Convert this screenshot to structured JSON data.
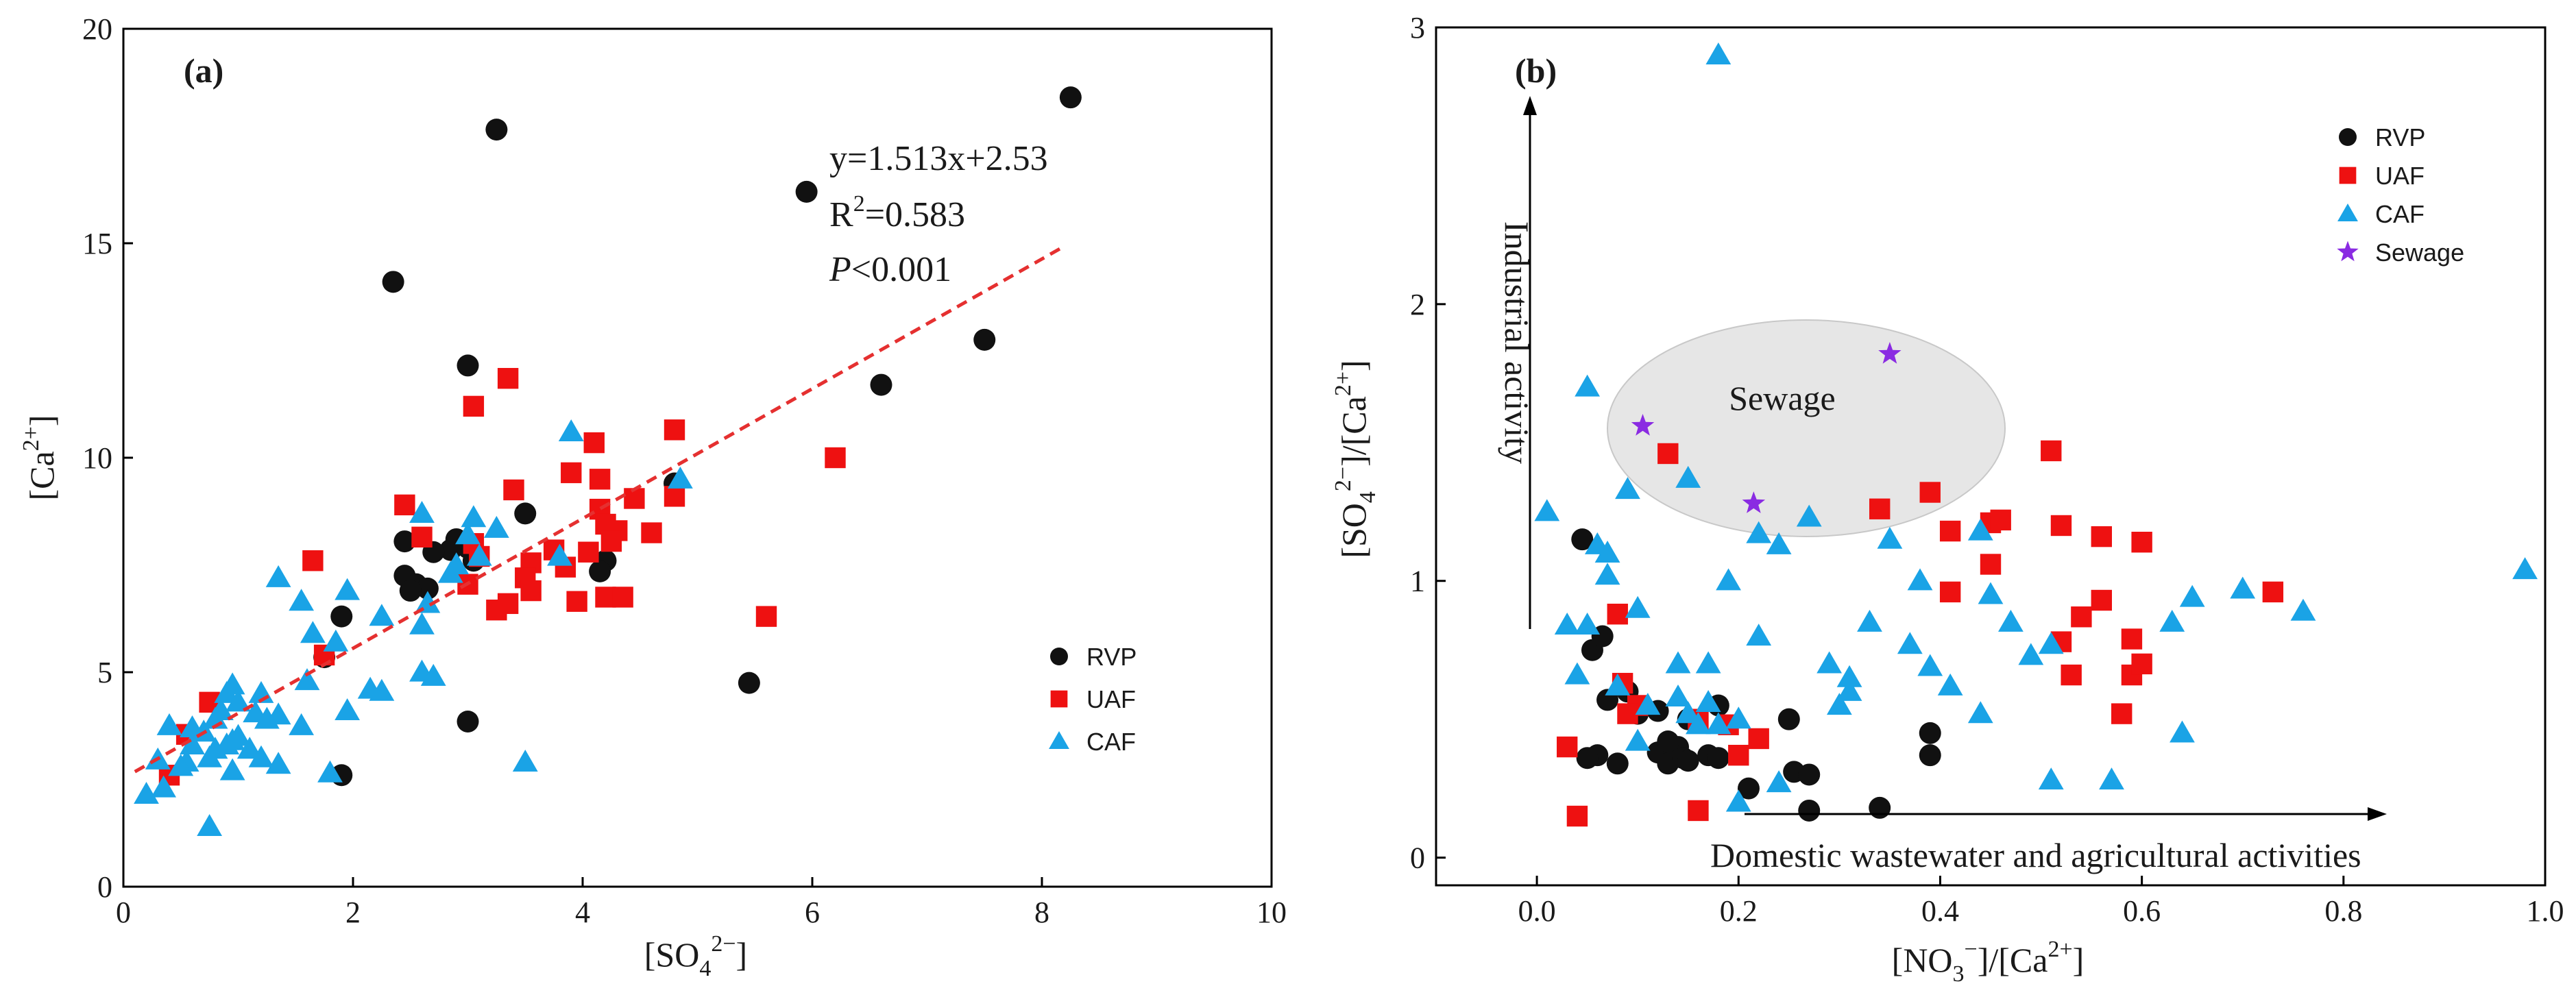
{
  "colors": {
    "RVP": "#111111",
    "UAF": "#ee1111",
    "CAF": "#1aa3e6",
    "Sewage": "#8a2be2",
    "fit_line": "#e53030",
    "ellipse_fill": "#e6e6e6",
    "ellipse_stroke": "#c8c8c8"
  },
  "chart_data": [
    {
      "type": "scatter",
      "panel_label": "(a)",
      "xlabel_base": "[SO",
      "xlabel_sub": "4",
      "xlabel_sup": "2−",
      "xlabel_end": "]",
      "ylabel_base": "[Ca",
      "ylabel_sup": "2+",
      "ylabel_end": "]",
      "xlim": [
        0,
        10
      ],
      "ylim": [
        0,
        20
      ],
      "xticks": [
        "0",
        "2",
        "4",
        "6",
        "8",
        "10"
      ],
      "yticks": [
        "0",
        "5",
        "10",
        "15",
        "20"
      ],
      "regression": {
        "slope": 1.513,
        "intercept": 2.53,
        "x_range": [
          0.1,
          8.2
        ],
        "equation": "y=1.513x+2.53",
        "r2_label": "R",
        "r2_sup": "2",
        "r2_value": "=0.583",
        "p_label": "P",
        "p_value": "<0.001"
      },
      "legend": [
        "RVP",
        "UAF",
        "CAF"
      ],
      "series": [
        {
          "name": "RVP",
          "marker": "circle",
          "points": [
            [
              8.25,
              18.4
            ],
            [
              3.25,
              17.65
            ],
            [
              5.95,
              16.2
            ],
            [
              2.35,
              14.1
            ],
            [
              7.5,
              12.75
            ],
            [
              3.0,
              12.15
            ],
            [
              6.6,
              11.7
            ],
            [
              4.8,
              9.4
            ],
            [
              3.5,
              8.7
            ],
            [
              2.45,
              8.05
            ],
            [
              2.9,
              8.1
            ],
            [
              3.0,
              7.9
            ],
            [
              2.85,
              7.85
            ],
            [
              3.05,
              7.6
            ],
            [
              2.7,
              7.8
            ],
            [
              4.2,
              7.6
            ],
            [
              4.15,
              7.35
            ],
            [
              2.45,
              7.25
            ],
            [
              2.55,
              7.05
            ],
            [
              2.65,
              6.95
            ],
            [
              2.5,
              6.9
            ],
            [
              1.9,
              6.3
            ],
            [
              1.75,
              5.35
            ],
            [
              5.45,
              4.75
            ],
            [
              3.0,
              3.85
            ],
            [
              1.9,
              2.6
            ]
          ]
        },
        {
          "name": "UAF",
          "marker": "square",
          "points": [
            [
              3.35,
              11.85
            ],
            [
              3.05,
              11.2
            ],
            [
              4.1,
              10.35
            ],
            [
              4.8,
              10.65
            ],
            [
              6.2,
              10.0
            ],
            [
              3.9,
              9.65
            ],
            [
              4.15,
              9.5
            ],
            [
              4.8,
              9.1
            ],
            [
              3.4,
              9.25
            ],
            [
              4.45,
              9.05
            ],
            [
              4.3,
              8.3
            ],
            [
              4.6,
              8.25
            ],
            [
              4.15,
              8.8
            ],
            [
              4.2,
              8.45
            ],
            [
              2.45,
              8.9
            ],
            [
              4.05,
              7.8
            ],
            [
              4.25,
              8.05
            ],
            [
              3.05,
              8.0
            ],
            [
              3.1,
              7.7
            ],
            [
              3.75,
              7.85
            ],
            [
              3.55,
              7.55
            ],
            [
              3.85,
              7.45
            ],
            [
              2.6,
              8.15
            ],
            [
              3.5,
              7.2
            ],
            [
              3.0,
              7.05
            ],
            [
              3.55,
              6.9
            ],
            [
              3.95,
              6.65
            ],
            [
              4.2,
              6.75
            ],
            [
              4.35,
              6.75
            ],
            [
              3.35,
              6.6
            ],
            [
              3.25,
              6.45
            ],
            [
              5.6,
              6.3
            ],
            [
              1.65,
              7.6
            ],
            [
              1.75,
              5.4
            ],
            [
              0.75,
              4.3
            ],
            [
              0.55,
              3.55
            ],
            [
              0.4,
              2.6
            ]
          ]
        },
        {
          "name": "CAF",
          "marker": "triangle",
          "points": [
            [
              3.9,
              10.6
            ],
            [
              4.85,
              9.5
            ],
            [
              3.05,
              8.6
            ],
            [
              2.6,
              8.7
            ],
            [
              3.25,
              8.35
            ],
            [
              3.0,
              8.2
            ],
            [
              3.1,
              7.7
            ],
            [
              3.8,
              7.7
            ],
            [
              2.85,
              7.3
            ],
            [
              2.65,
              6.6
            ],
            [
              2.6,
              6.1
            ],
            [
              1.95,
              6.9
            ],
            [
              1.55,
              6.65
            ],
            [
              1.35,
              7.2
            ],
            [
              1.65,
              5.9
            ],
            [
              2.25,
              6.3
            ],
            [
              1.85,
              5.7
            ],
            [
              2.6,
              5.0
            ],
            [
              2.7,
              4.9
            ],
            [
              2.15,
              4.6
            ],
            [
              2.25,
              4.55
            ],
            [
              1.6,
              4.8
            ],
            [
              1.2,
              4.5
            ],
            [
              0.95,
              4.7
            ],
            [
              0.9,
              4.5
            ],
            [
              1.0,
              4.3
            ],
            [
              0.85,
              4.1
            ],
            [
              1.15,
              4.05
            ],
            [
              1.35,
              4.0
            ],
            [
              1.25,
              3.9
            ],
            [
              1.55,
              3.75
            ],
            [
              0.8,
              3.9
            ],
            [
              0.6,
              3.7
            ],
            [
              0.4,
              3.75
            ],
            [
              0.7,
              3.6
            ],
            [
              0.95,
              3.4
            ],
            [
              1.1,
              3.2
            ],
            [
              0.6,
              3.3
            ],
            [
              0.8,
              3.2
            ],
            [
              1.2,
              3.0
            ],
            [
              1.0,
              3.5
            ],
            [
              0.9,
              3.3
            ],
            [
              0.75,
              3.0
            ],
            [
              0.55,
              2.9
            ],
            [
              0.5,
              2.8
            ],
            [
              0.35,
              2.3
            ],
            [
              0.2,
              2.15
            ],
            [
              0.95,
              2.7
            ],
            [
              1.35,
              2.85
            ],
            [
              1.8,
              2.65
            ],
            [
              1.95,
              4.1
            ],
            [
              0.3,
              2.95
            ],
            [
              0.75,
              1.4
            ],
            [
              3.5,
              2.9
            ],
            [
              2.9,
              7.5
            ]
          ]
        }
      ]
    },
    {
      "type": "scatter",
      "panel_label": "(b)",
      "xlabel_base": "[NO",
      "xlabel_sub": "3",
      "xlabel_sup": "−",
      "xlabel_end": "]/[Ca",
      "xlabel_sup2": "2+",
      "xlabel_end2": "]",
      "ylabel_base": "[SO",
      "ylabel_sub": "4",
      "ylabel_sup": "2−",
      "ylabel_end": "]/[Ca",
      "ylabel_sup2": "2+",
      "ylabel_end2": "]",
      "xlim": [
        -0.1,
        1.0
      ],
      "ylim": [
        -0.1,
        3.0
      ],
      "xticks": [
        "0.0",
        "0.2",
        "0.4",
        "0.6",
        "0.8",
        "1.0"
      ],
      "yticks": [
        "0",
        "1",
        "2",
        "3"
      ],
      "annotations": {
        "sewage_region": "Sewage",
        "industrial": "Industrial activity",
        "domestic": "Domestic wastewater and agricultural activities"
      },
      "legend": [
        "RVP",
        "UAF",
        "CAF",
        "Sewage"
      ],
      "series": [
        {
          "name": "RVP",
          "marker": "circle",
          "points": [
            [
              0.045,
              1.15
            ],
            [
              0.055,
              0.75
            ],
            [
              0.065,
              0.8
            ],
            [
              0.07,
              0.57
            ],
            [
              0.09,
              0.6
            ],
            [
              0.1,
              0.52
            ],
            [
              0.12,
              0.53
            ],
            [
              0.15,
              0.5
            ],
            [
              0.18,
              0.55
            ],
            [
              0.06,
              0.37
            ],
            [
              0.05,
              0.36
            ],
            [
              0.08,
              0.34
            ],
            [
              0.12,
              0.38
            ],
            [
              0.13,
              0.34
            ],
            [
              0.14,
              0.4
            ],
            [
              0.145,
              0.36
            ],
            [
              0.13,
              0.42
            ],
            [
              0.17,
              0.37
            ],
            [
              0.15,
              0.35
            ],
            [
              0.18,
              0.36
            ],
            [
              0.21,
              0.25
            ],
            [
              0.25,
              0.5
            ],
            [
              0.255,
              0.31
            ],
            [
              0.27,
              0.3
            ],
            [
              0.27,
              0.17
            ],
            [
              0.34,
              0.18
            ],
            [
              0.39,
              0.45
            ],
            [
              0.39,
              0.37
            ]
          ]
        },
        {
          "name": "UAF",
          "marker": "square",
          "points": [
            [
              0.03,
              0.4
            ],
            [
              0.04,
              0.15
            ],
            [
              0.08,
              0.88
            ],
            [
              0.085,
              0.63
            ],
            [
              0.1,
              0.55
            ],
            [
              0.09,
              0.52
            ],
            [
              0.13,
              1.46
            ],
            [
              0.16,
              0.5
            ],
            [
              0.19,
              0.48
            ],
            [
              0.2,
              0.37
            ],
            [
              0.22,
              0.43
            ],
            [
              0.16,
              0.17
            ],
            [
              0.34,
              1.26
            ],
            [
              0.39,
              1.32
            ],
            [
              0.41,
              1.18
            ],
            [
              0.41,
              0.96
            ],
            [
              0.45,
              1.06
            ],
            [
              0.45,
              1.21
            ],
            [
              0.46,
              1.22
            ],
            [
              0.51,
              1.47
            ],
            [
              0.52,
              1.2
            ],
            [
              0.56,
              0.93
            ],
            [
              0.52,
              0.78
            ],
            [
              0.53,
              0.66
            ],
            [
              0.56,
              1.16
            ],
            [
              0.58,
              0.52
            ],
            [
              0.59,
              0.66
            ],
            [
              0.6,
              0.7
            ],
            [
              0.59,
              0.79
            ],
            [
              0.6,
              1.14
            ],
            [
              0.73,
              0.96
            ],
            [
              0.54,
              0.87
            ]
          ]
        },
        {
          "name": "CAF",
          "marker": "triangle",
          "points": [
            [
              0.18,
              2.9
            ],
            [
              0.01,
              1.25
            ],
            [
              0.05,
              1.7
            ],
            [
              0.09,
              1.33
            ],
            [
              0.15,
              1.37
            ],
            [
              0.06,
              1.13
            ],
            [
              0.07,
              1.1
            ],
            [
              0.07,
              1.02
            ],
            [
              0.1,
              0.9
            ],
            [
              0.03,
              0.84
            ],
            [
              0.05,
              0.84
            ],
            [
              0.04,
              0.66
            ],
            [
              0.08,
              0.62
            ],
            [
              0.11,
              0.55
            ],
            [
              0.14,
              0.58
            ],
            [
              0.15,
              0.52
            ],
            [
              0.16,
              0.48
            ],
            [
              0.17,
              0.56
            ],
            [
              0.18,
              0.48
            ],
            [
              0.14,
              0.7
            ],
            [
              0.17,
              0.7
            ],
            [
              0.19,
              1.0
            ],
            [
              0.2,
              0.5
            ],
            [
              0.22,
              0.8
            ],
            [
              0.22,
              1.17
            ],
            [
              0.24,
              1.13
            ],
            [
              0.27,
              1.23
            ],
            [
              0.29,
              0.7
            ],
            [
              0.31,
              0.65
            ],
            [
              0.31,
              0.6
            ],
            [
              0.3,
              0.55
            ],
            [
              0.33,
              0.85
            ],
            [
              0.35,
              1.15
            ],
            [
              0.37,
              0.77
            ],
            [
              0.38,
              1.0
            ],
            [
              0.39,
              0.69
            ],
            [
              0.41,
              0.62
            ],
            [
              0.44,
              0.52
            ],
            [
              0.45,
              0.95
            ],
            [
              0.44,
              1.18
            ],
            [
              0.47,
              0.85
            ],
            [
              0.49,
              0.73
            ],
            [
              0.51,
              0.77
            ],
            [
              0.51,
              0.28
            ],
            [
              0.57,
              0.28
            ],
            [
              0.63,
              0.85
            ],
            [
              0.64,
              0.45
            ],
            [
              0.65,
              0.94
            ],
            [
              0.7,
              0.97
            ],
            [
              0.76,
              0.89
            ],
            [
              0.98,
              1.04
            ],
            [
              0.24,
              0.27
            ],
            [
              0.2,
              0.2
            ],
            [
              0.1,
              0.42
            ]
          ]
        },
        {
          "name": "Sewage",
          "marker": "star",
          "points": [
            [
              0.105,
              1.56
            ],
            [
              0.215,
              1.28
            ],
            [
              0.35,
              1.82
            ]
          ]
        }
      ]
    }
  ]
}
